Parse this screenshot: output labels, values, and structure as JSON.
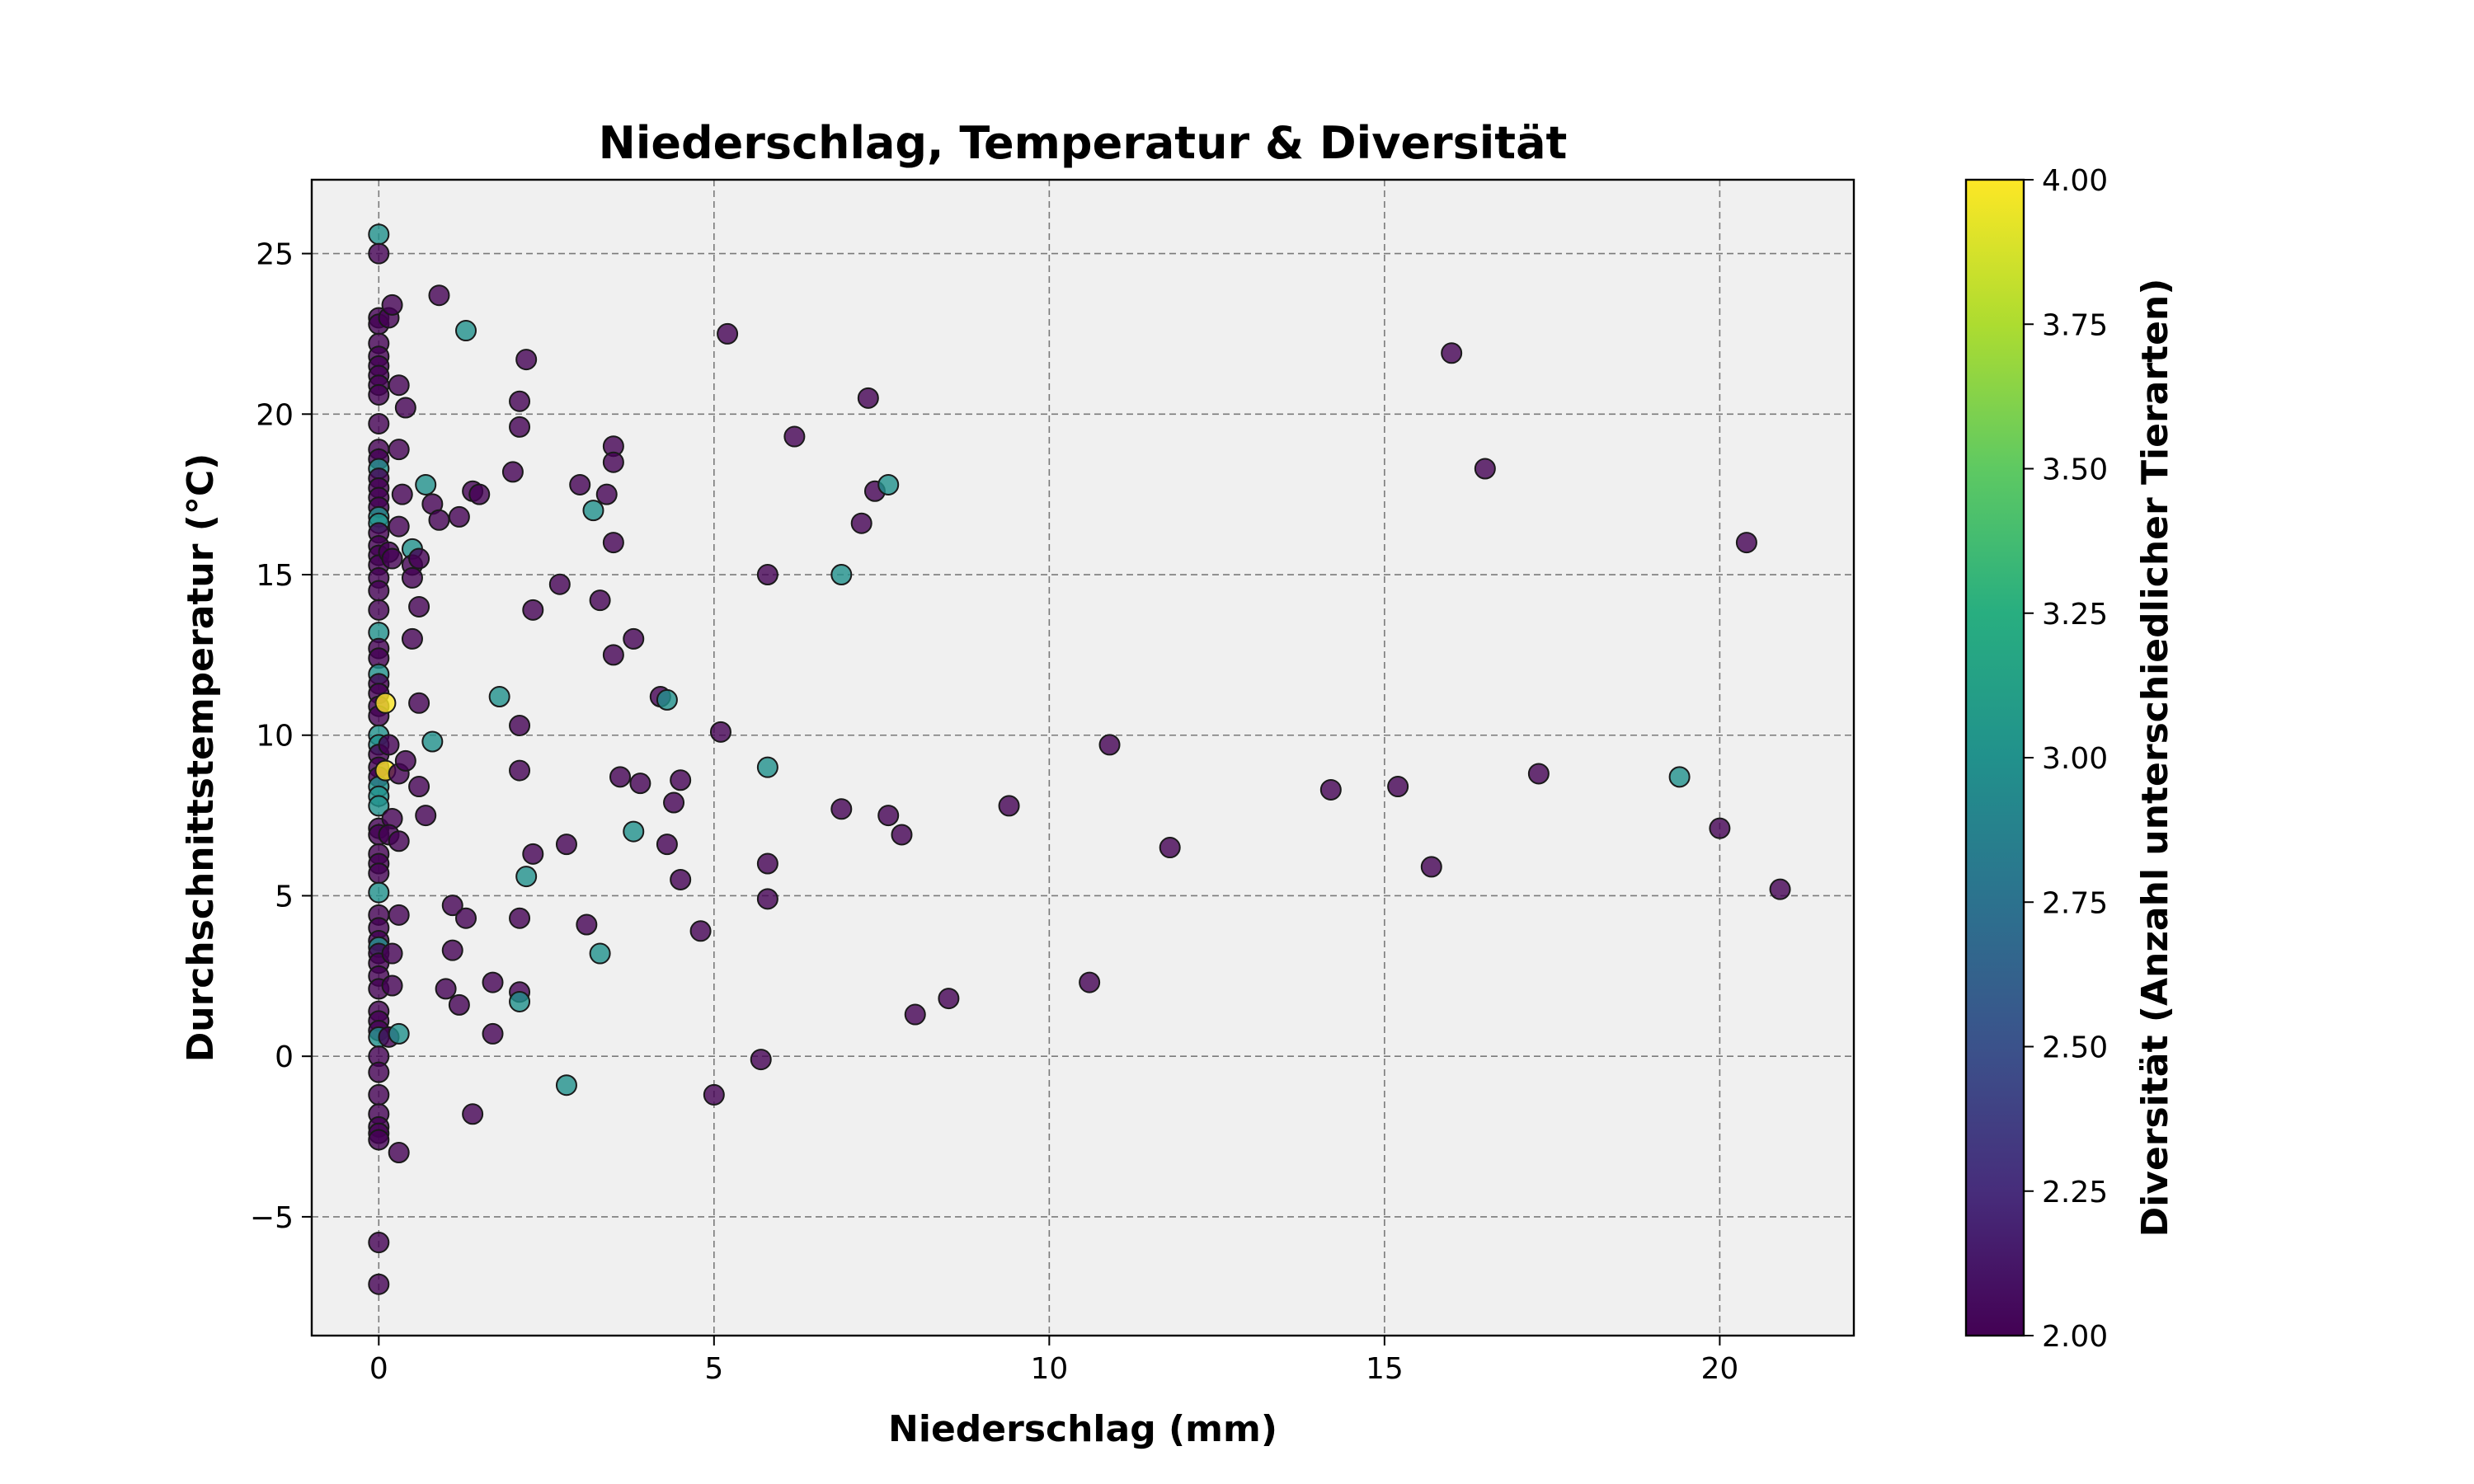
{
  "chart_data": {
    "type": "scatter",
    "title": "Niederschlag, Temperatur & Diversität",
    "xlabel": "Niederschlag (mm)",
    "ylabel": "Durchschnittstemperatur (°C)",
    "xlim": [
      -1,
      22
    ],
    "ylim": [
      -8.7,
      27.3
    ],
    "x_ticks": [
      0,
      5,
      10,
      15,
      20
    ],
    "x_tick_labels": [
      "0",
      "5",
      "10",
      "15",
      "20"
    ],
    "y_ticks": [
      -5,
      0,
      5,
      10,
      15,
      20,
      25
    ],
    "y_tick_labels": [
      "−5",
      "0",
      "5",
      "10",
      "15",
      "20",
      "25"
    ],
    "grid": true,
    "background": "#f0f0f0",
    "colorbar": {
      "label": "Diversität (Anzahl unterschiedlicher Tierarten)",
      "range": [
        2.0,
        4.0
      ],
      "ticks": [
        2.0,
        2.25,
        2.5,
        2.75,
        3.0,
        3.25,
        3.5,
        3.75,
        4.0
      ],
      "tick_labels": [
        "2.00",
        "2.25",
        "2.50",
        "2.75",
        "3.00",
        "3.25",
        "3.50",
        "3.75",
        "4.00"
      ],
      "colormap": "viridis"
    },
    "points": [
      [
        0,
        25.6,
        3
      ],
      [
        0,
        25.0,
        2
      ],
      [
        0,
        23.0,
        2
      ],
      [
        0,
        22.8,
        2
      ],
      [
        0,
        22.2,
        2
      ],
      [
        0,
        21.8,
        2
      ],
      [
        0,
        21.5,
        2
      ],
      [
        0,
        21.2,
        2
      ],
      [
        0,
        20.9,
        2
      ],
      [
        0,
        20.6,
        2
      ],
      [
        0,
        19.7,
        2
      ],
      [
        0,
        18.9,
        2
      ],
      [
        0,
        18.6,
        2
      ],
      [
        0,
        18.3,
        3
      ],
      [
        0,
        18.0,
        2
      ],
      [
        0,
        17.7,
        2
      ],
      [
        0,
        17.4,
        2
      ],
      [
        0,
        17.1,
        2
      ],
      [
        0,
        16.8,
        3
      ],
      [
        0,
        16.6,
        3
      ],
      [
        0,
        16.3,
        2
      ],
      [
        0,
        15.9,
        2
      ],
      [
        0,
        15.6,
        2
      ],
      [
        0,
        15.3,
        2
      ],
      [
        0,
        14.9,
        2
      ],
      [
        0,
        14.5,
        2
      ],
      [
        0,
        13.9,
        2
      ],
      [
        0,
        13.2,
        3
      ],
      [
        0,
        12.7,
        2
      ],
      [
        0,
        12.4,
        2
      ],
      [
        0,
        11.9,
        3
      ],
      [
        0,
        11.6,
        2
      ],
      [
        0,
        11.3,
        2
      ],
      [
        0,
        10.9,
        2
      ],
      [
        0,
        10.6,
        2
      ],
      [
        0,
        10.0,
        3
      ],
      [
        0,
        9.7,
        3
      ],
      [
        0,
        9.4,
        2
      ],
      [
        0,
        9.0,
        2
      ],
      [
        0,
        8.7,
        2
      ],
      [
        0,
        8.4,
        3
      ],
      [
        0,
        8.1,
        3
      ],
      [
        0,
        7.8,
        3
      ],
      [
        0,
        7.1,
        2
      ],
      [
        0,
        6.9,
        2
      ],
      [
        0,
        6.3,
        2
      ],
      [
        0,
        6.0,
        2
      ],
      [
        0,
        5.7,
        2
      ],
      [
        0,
        5.1,
        3
      ],
      [
        0,
        4.4,
        2
      ],
      [
        0,
        4.0,
        2
      ],
      [
        0,
        3.6,
        2
      ],
      [
        0,
        3.4,
        3
      ],
      [
        0,
        3.2,
        2
      ],
      [
        0,
        2.9,
        2
      ],
      [
        0,
        2.5,
        2
      ],
      [
        0,
        2.1,
        2
      ],
      [
        0,
        1.4,
        2
      ],
      [
        0,
        1.1,
        2
      ],
      [
        0,
        0.8,
        2
      ],
      [
        0,
        0.6,
        3
      ],
      [
        0,
        0.0,
        2
      ],
      [
        0,
        -0.5,
        2
      ],
      [
        0,
        -1.2,
        2
      ],
      [
        0,
        -1.8,
        2
      ],
      [
        0,
        -2.2,
        2
      ],
      [
        0,
        -2.4,
        2
      ],
      [
        0,
        -2.6,
        2
      ],
      [
        0,
        -5.8,
        2
      ],
      [
        0,
        -7.1,
        2
      ],
      [
        0.1,
        11.0,
        4
      ],
      [
        0.1,
        8.9,
        4
      ],
      [
        0.15,
        23.0,
        2
      ],
      [
        0.2,
        23.4,
        2
      ],
      [
        0.15,
        15.7,
        2
      ],
      [
        0.2,
        15.5,
        2
      ],
      [
        0.15,
        9.7,
        2
      ],
      [
        0.2,
        7.4,
        2
      ],
      [
        0.15,
        6.9,
        2
      ],
      [
        0.2,
        3.2,
        2
      ],
      [
        0.2,
        2.2,
        2
      ],
      [
        0.15,
        0.6,
        2
      ],
      [
        0.3,
        20.9,
        2
      ],
      [
        0.3,
        18.9,
        2
      ],
      [
        0.3,
        16.5,
        2
      ],
      [
        0.3,
        8.8,
        2
      ],
      [
        0.3,
        6.7,
        2
      ],
      [
        0.3,
        4.4,
        2
      ],
      [
        0.3,
        0.7,
        3
      ],
      [
        0.3,
        -3.0,
        2
      ],
      [
        0.35,
        17.5,
        2
      ],
      [
        0.4,
        20.2,
        2
      ],
      [
        0.4,
        9.2,
        2
      ],
      [
        0.5,
        15.8,
        3
      ],
      [
        0.5,
        15.3,
        2
      ],
      [
        0.5,
        14.9,
        2
      ],
      [
        0.5,
        13.0,
        2
      ],
      [
        0.6,
        15.5,
        2
      ],
      [
        0.6,
        14.0,
        2
      ],
      [
        0.6,
        11.0,
        2
      ],
      [
        0.6,
        8.4,
        2
      ],
      [
        0.7,
        17.8,
        3
      ],
      [
        0.7,
        7.5,
        2
      ],
      [
        0.8,
        17.2,
        2
      ],
      [
        0.8,
        9.8,
        3
      ],
      [
        0.9,
        23.7,
        2
      ],
      [
        0.9,
        16.7,
        2
      ],
      [
        1.0,
        2.1,
        2
      ],
      [
        1.1,
        4.7,
        2
      ],
      [
        1.1,
        3.3,
        2
      ],
      [
        1.2,
        16.8,
        2
      ],
      [
        1.2,
        1.6,
        2
      ],
      [
        1.3,
        22.6,
        3
      ],
      [
        1.3,
        4.3,
        2
      ],
      [
        1.4,
        17.6,
        2
      ],
      [
        1.4,
        -1.8,
        2
      ],
      [
        1.5,
        17.5,
        2
      ],
      [
        1.7,
        2.3,
        2
      ],
      [
        1.7,
        0.7,
        2
      ],
      [
        1.8,
        11.2,
        3
      ],
      [
        2.0,
        18.2,
        2
      ],
      [
        2.1,
        20.4,
        2
      ],
      [
        2.1,
        19.6,
        2
      ],
      [
        2.1,
        10.3,
        2
      ],
      [
        2.1,
        8.9,
        2
      ],
      [
        2.1,
        4.3,
        2
      ],
      [
        2.1,
        2.0,
        2
      ],
      [
        2.1,
        1.7,
        3
      ],
      [
        2.2,
        21.7,
        2
      ],
      [
        2.2,
        5.6,
        3
      ],
      [
        2.3,
        13.9,
        2
      ],
      [
        2.3,
        6.3,
        2
      ],
      [
        2.7,
        14.7,
        2
      ],
      [
        2.8,
        6.6,
        2
      ],
      [
        2.8,
        -0.9,
        3
      ],
      [
        3.0,
        17.8,
        2
      ],
      [
        3.1,
        4.1,
        2
      ],
      [
        3.2,
        17.0,
        3
      ],
      [
        3.3,
        14.2,
        2
      ],
      [
        3.3,
        3.2,
        3
      ],
      [
        3.4,
        17.5,
        2
      ],
      [
        3.5,
        19.0,
        2
      ],
      [
        3.5,
        18.5,
        2
      ],
      [
        3.5,
        16.0,
        2
      ],
      [
        3.5,
        12.5,
        2
      ],
      [
        3.6,
        8.7,
        2
      ],
      [
        3.8,
        13.0,
        2
      ],
      [
        3.8,
        7.0,
        3
      ],
      [
        3.9,
        8.5,
        2
      ],
      [
        4.2,
        11.2,
        2
      ],
      [
        4.3,
        11.1,
        3
      ],
      [
        4.3,
        6.6,
        2
      ],
      [
        4.4,
        7.9,
        2
      ],
      [
        4.5,
        8.6,
        2
      ],
      [
        4.5,
        5.5,
        2
      ],
      [
        4.8,
        3.9,
        2
      ],
      [
        5.0,
        -1.2,
        2
      ],
      [
        5.1,
        10.1,
        2
      ],
      [
        5.2,
        22.5,
        2
      ],
      [
        5.7,
        -0.1,
        2
      ],
      [
        5.8,
        15.0,
        2
      ],
      [
        5.8,
        9.0,
        3
      ],
      [
        5.8,
        6.0,
        2
      ],
      [
        5.8,
        4.9,
        2
      ],
      [
        6.2,
        19.3,
        2
      ],
      [
        6.9,
        15.0,
        3
      ],
      [
        6.9,
        7.7,
        2
      ],
      [
        7.2,
        16.6,
        2
      ],
      [
        7.3,
        20.5,
        2
      ],
      [
        7.4,
        17.6,
        2
      ],
      [
        7.6,
        17.8,
        3
      ],
      [
        7.6,
        7.5,
        2
      ],
      [
        7.8,
        6.9,
        2
      ],
      [
        8.0,
        1.3,
        2
      ],
      [
        8.5,
        1.8,
        2
      ],
      [
        9.4,
        7.8,
        2
      ],
      [
        10.6,
        2.3,
        2
      ],
      [
        10.9,
        9.7,
        2
      ],
      [
        11.8,
        6.5,
        2
      ],
      [
        14.2,
        8.3,
        2
      ],
      [
        15.2,
        8.4,
        2
      ],
      [
        15.7,
        5.9,
        2
      ],
      [
        16.0,
        21.9,
        2
      ],
      [
        16.5,
        18.3,
        2
      ],
      [
        17.3,
        8.8,
        2
      ],
      [
        19.4,
        8.7,
        3
      ],
      [
        20.0,
        7.1,
        2
      ],
      [
        20.4,
        16.0,
        2
      ],
      [
        20.9,
        5.2,
        2
      ]
    ]
  }
}
